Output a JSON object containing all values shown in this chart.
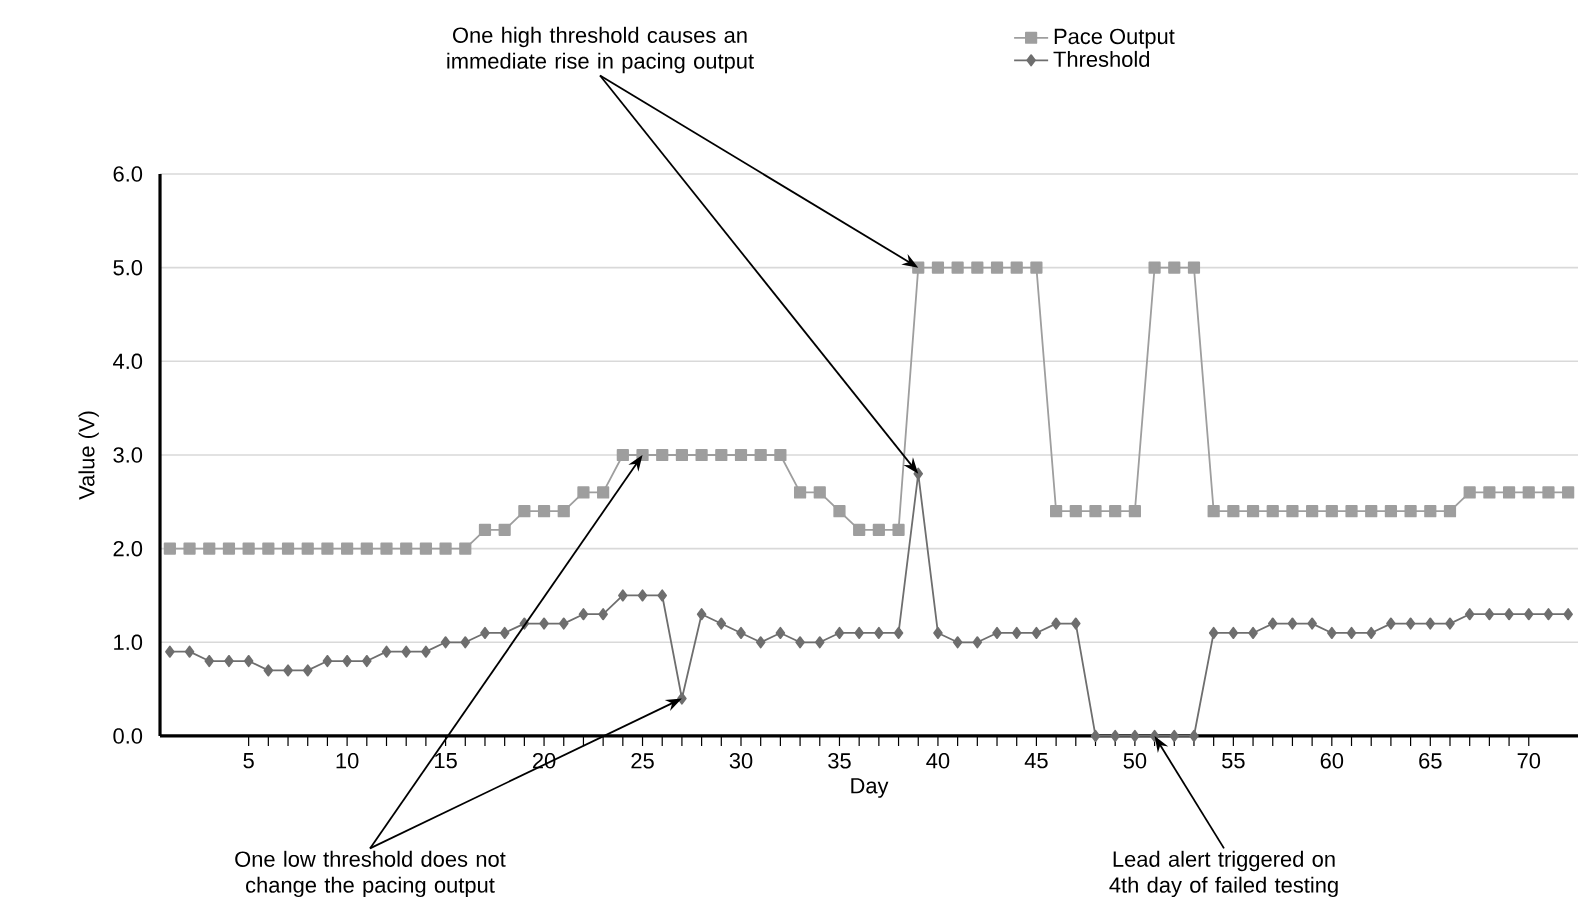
{
  "chart_data": {
    "type": "line",
    "xlabel": "Day",
    "ylabel": "Value (V)",
    "x": [
      1,
      2,
      3,
      4,
      5,
      6,
      7,
      8,
      9,
      10,
      11,
      12,
      13,
      14,
      15,
      16,
      17,
      18,
      19,
      20,
      21,
      22,
      23,
      24,
      25,
      26,
      27,
      28,
      29,
      30,
      31,
      32,
      33,
      34,
      35,
      36,
      37,
      38,
      39,
      40,
      41,
      42,
      43,
      44,
      45,
      46,
      47,
      48,
      49,
      50,
      51,
      52,
      53,
      54,
      55,
      56,
      57,
      58,
      59,
      60,
      61,
      62,
      63,
      64,
      65,
      66,
      67,
      68,
      69,
      70,
      71,
      72
    ],
    "series": [
      {
        "name": "Pace Output",
        "color": "#9e9e9e",
        "marker": "square",
        "values": [
          2.0,
          2.0,
          2.0,
          2.0,
          2.0,
          2.0,
          2.0,
          2.0,
          2.0,
          2.0,
          2.0,
          2.0,
          2.0,
          2.0,
          2.0,
          2.0,
          2.2,
          2.2,
          2.4,
          2.4,
          2.4,
          2.6,
          2.6,
          3.0,
          3.0,
          3.0,
          3.0,
          3.0,
          3.0,
          3.0,
          3.0,
          3.0,
          2.6,
          2.6,
          2.4,
          2.2,
          2.2,
          2.2,
          5.0,
          5.0,
          5.0,
          5.0,
          5.0,
          5.0,
          5.0,
          2.4,
          2.4,
          2.4,
          2.4,
          2.4,
          5.0,
          5.0,
          5.0,
          2.4,
          2.4,
          2.4,
          2.4,
          2.4,
          2.4,
          2.4,
          2.4,
          2.4,
          2.4,
          2.4,
          2.4,
          2.4,
          2.6,
          2.6,
          2.6,
          2.6,
          2.6,
          2.6
        ]
      },
      {
        "name": "Threshold",
        "color": "#6e6e6e",
        "marker": "diamond",
        "values": [
          0.9,
          0.9,
          0.8,
          0.8,
          0.8,
          0.7,
          0.7,
          0.7,
          0.8,
          0.8,
          0.8,
          0.9,
          0.9,
          0.9,
          1.0,
          1.0,
          1.1,
          1.1,
          1.2,
          1.2,
          1.2,
          1.3,
          1.3,
          1.5,
          1.5,
          1.5,
          0.4,
          1.3,
          1.2,
          1.1,
          1.0,
          1.1,
          1.0,
          1.0,
          1.1,
          1.1,
          1.1,
          1.1,
          2.8,
          1.1,
          1.0,
          1.0,
          1.1,
          1.1,
          1.1,
          1.2,
          1.2,
          0.0,
          0.0,
          0.0,
          0.0,
          0.0,
          0.0,
          1.1,
          1.1,
          1.1,
          1.2,
          1.2,
          1.2,
          1.1,
          1.1,
          1.1,
          1.2,
          1.2,
          1.2,
          1.2,
          1.3,
          1.3,
          1.3,
          1.3,
          1.3,
          1.3
        ]
      }
    ],
    "xlim": [
      0.5,
      72.5
    ],
    "ylim": [
      0,
      6
    ],
    "xticks": [
      5,
      10,
      15,
      20,
      25,
      30,
      35,
      40,
      45,
      50,
      55,
      60,
      65,
      70
    ],
    "yticks": [
      {
        "value": 0,
        "label": "0.0"
      },
      {
        "value": 1,
        "label": "1.0"
      },
      {
        "value": 2,
        "label": "2.0"
      },
      {
        "value": 3,
        "label": "3.0"
      },
      {
        "value": 4,
        "label": "4.0"
      },
      {
        "value": 5,
        "label": "5.0"
      },
      {
        "value": 6,
        "label": "6.0"
      }
    ],
    "grid": "y",
    "legend": "top",
    "line_style": "solid",
    "annotations": [
      {
        "text": "One high threshold causes an immediate rise in pacing output",
        "x": 39,
        "y": 2.8
      },
      {
        "text": "One low threshold does not change the pacing output",
        "x": 27,
        "y": 0.4
      },
      {
        "text": "Lead alert triggered on 4th day of failed testing",
        "x": 51,
        "y": 0
      }
    ]
  }
}
